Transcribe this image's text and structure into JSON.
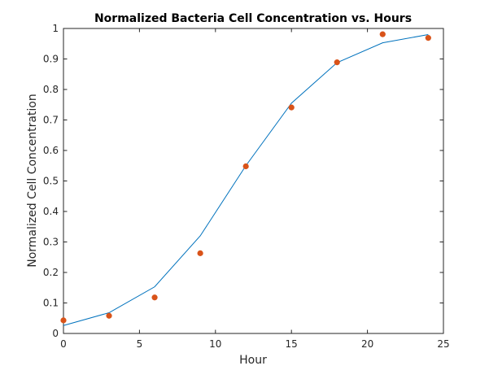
{
  "chart_data": {
    "type": "line",
    "title": "Normalized Bacteria Cell Concentration vs. Hours",
    "xlabel": "Hour",
    "ylabel": "Normalized Cell Concentration",
    "xlim": [
      0,
      25
    ],
    "ylim": [
      0,
      1
    ],
    "xticks": [
      "0",
      "5",
      "10",
      "15",
      "20",
      "25"
    ],
    "yticks": [
      "0",
      "0.1",
      "0.2",
      "0.3",
      "0.4",
      "0.5",
      "0.6",
      "0.7",
      "0.8",
      "0.9",
      "1"
    ],
    "grid": false,
    "legend": "none",
    "series": [
      {
        "kind": "line",
        "color": "#0072BD",
        "x": [
          0,
          3,
          6,
          9,
          12,
          15,
          18,
          21,
          24
        ],
        "y": [
          0.026,
          0.068,
          0.153,
          0.32,
          0.55,
          0.755,
          0.888,
          0.953,
          0.98
        ]
      },
      {
        "kind": "scatter",
        "color": "#D95319",
        "x": [
          0,
          3,
          6,
          9,
          12,
          15,
          18,
          21,
          24
        ],
        "y": [
          0.043,
          0.058,
          0.118,
          0.263,
          0.548,
          0.741,
          0.889,
          0.981,
          0.969
        ]
      }
    ]
  }
}
